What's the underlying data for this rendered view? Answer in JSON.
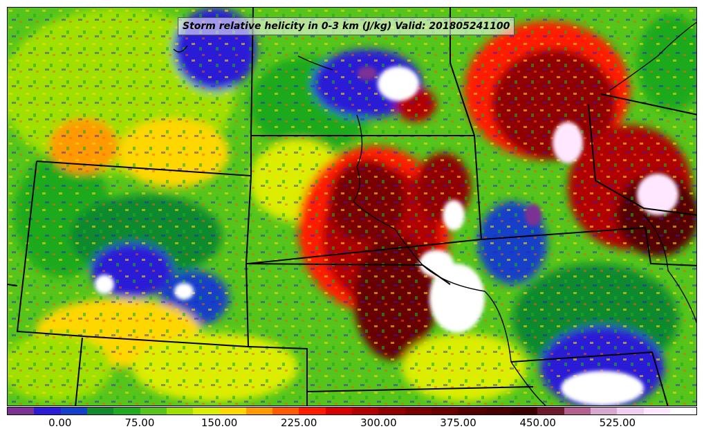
{
  "map": {
    "title": "Storm relative helicity in 0-3 km (J/kg) Valid: 201805241100",
    "colorbar": {
      "colors": [
        "#7b3294",
        "#2b1bd6",
        "#1240c8",
        "#118a2e",
        "#1faa1f",
        "#55c51b",
        "#9fe000",
        "#d9ee00",
        "#ffd700",
        "#ff9a00",
        "#ff5a00",
        "#ff1a00",
        "#d80000",
        "#b00000",
        "#900000",
        "#7a0000",
        "#680000",
        "#550000",
        "#4a0000",
        "#3d0000",
        "#6e1a2e",
        "#b36090",
        "#d8a8d0",
        "#f0d0f0",
        "#ffe8ff",
        "#ffffff"
      ],
      "tick_labels": [
        "0.00",
        "75.00",
        "150.00",
        "225.00",
        "300.00",
        "375.00",
        "450.00",
        "525.00"
      ],
      "tick_values": [
        0,
        75,
        150,
        225,
        300,
        375,
        450,
        525
      ],
      "range": [
        -50,
        600
      ]
    }
  }
}
